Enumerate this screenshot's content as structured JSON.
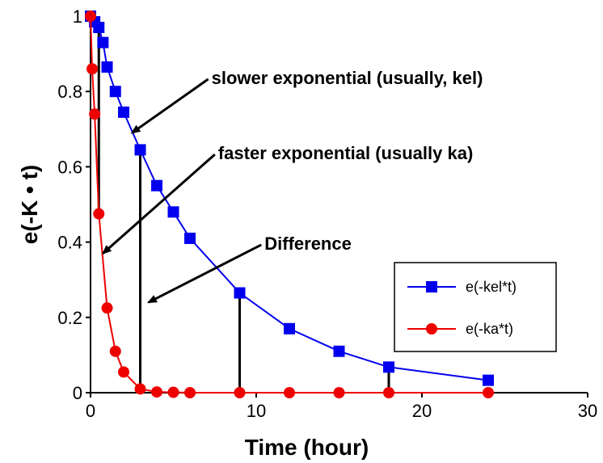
{
  "chart_data": {
    "type": "line",
    "xlabel": "Time (hour)",
    "ylabel": "e(-K • t)",
    "xlim": [
      0,
      30
    ],
    "ylim": [
      0,
      1
    ],
    "x_ticks": [
      0,
      10,
      20,
      30
    ],
    "y_ticks": [
      0,
      0.2,
      0.4,
      0.6,
      0.8,
      1
    ],
    "x_tick_labels": [
      "0",
      "10",
      "20",
      "30"
    ],
    "y_tick_labels": [
      "0",
      "0.2",
      "0.4",
      "0.6",
      "0.8",
      "1"
    ],
    "grid": false,
    "legend_position": "right",
    "series": [
      {
        "name": "e(-kel*t)",
        "color": "#0000ee",
        "marker": "square",
        "points": [
          [
            0,
            1
          ],
          [
            0.25,
            0.985
          ],
          [
            0.5,
            0.97
          ],
          [
            0.75,
            0.93
          ],
          [
            1,
            0.865
          ],
          [
            1.5,
            0.8
          ],
          [
            2,
            0.745
          ],
          [
            3,
            0.645
          ],
          [
            4,
            0.55
          ],
          [
            5,
            0.48
          ],
          [
            6,
            0.41
          ],
          [
            9,
            0.265
          ],
          [
            12,
            0.17
          ],
          [
            15,
            0.11
          ],
          [
            18,
            0.068
          ],
          [
            24,
            0.033
          ]
        ]
      },
      {
        "name": "e(-ka*t)",
        "color": "#ee0000",
        "marker": "circle",
        "points": [
          [
            0,
            1
          ],
          [
            0.1,
            0.86
          ],
          [
            0.25,
            0.74
          ],
          [
            0.5,
            0.475
          ],
          [
            1,
            0.225
          ],
          [
            1.5,
            0.11
          ],
          [
            2,
            0.055
          ],
          [
            3,
            0.01
          ],
          [
            4,
            0.002
          ],
          [
            5,
            0.001
          ],
          [
            6,
            0
          ],
          [
            9,
            0
          ],
          [
            12,
            0
          ],
          [
            15,
            0
          ],
          [
            18,
            0
          ],
          [
            24,
            0
          ]
        ]
      }
    ],
    "difference_lines_x": [
      0.5,
      3,
      9,
      18
    ],
    "annotations": [
      {
        "id": "slower",
        "text": "slower exponential (usually, kel)",
        "text_x": 7.3,
        "text_y": 0.82,
        "arrow_to": [
          2.5,
          0.69
        ]
      },
      {
        "id": "faster",
        "text": "faster exponential (usually ka)",
        "text_x": 7.7,
        "text_y": 0.62,
        "arrow_to": [
          0.75,
          0.37
        ]
      },
      {
        "id": "difference",
        "text": "Difference",
        "text_x": 10.5,
        "text_y": 0.38,
        "arrow_to": [
          3.5,
          0.24
        ]
      }
    ]
  }
}
